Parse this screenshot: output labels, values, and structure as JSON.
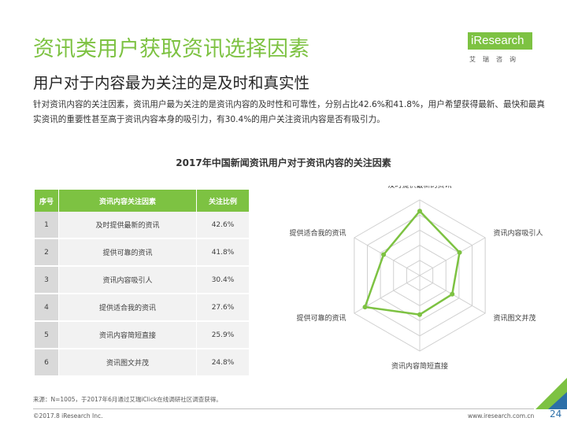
{
  "header": {
    "title": "资讯类用户获取资讯选择因素",
    "subtitle": "用户对于内容最为关注的是及时和真实性",
    "description": "针对资讯内容的关注因素，资讯用户最为关注的是资讯内容的及时性和可靠性，分别占比42.6%和41.8%，用户希望获得最新、最快和最真实资讯的重要性甚至高于资讯内容本身的吸引力，有30.4%的用户关注资讯内容是否有吸引力。"
  },
  "logo": {
    "brand": "iResearch",
    "sub": "艾瑞咨询"
  },
  "colors": {
    "accent": "#7dc242",
    "page_number": "#2c6fa8"
  },
  "chart_data": {
    "type": "radar",
    "title": "2017年中国新闻资讯用户对于资讯内容的关注因素",
    "table": {
      "headers": [
        "序号",
        "资讯内容关注因素",
        "关注比例"
      ],
      "rows": [
        {
          "index": "1",
          "factor": "及时提供最新的资讯",
          "value": "42.6%"
        },
        {
          "index": "2",
          "factor": "提供可靠的资讯",
          "value": "41.8%"
        },
        {
          "index": "3",
          "factor": "资讯内容吸引人",
          "value": "30.4%"
        },
        {
          "index": "4",
          "factor": "提供适合我的资讯",
          "value": "27.6%"
        },
        {
          "index": "5",
          "factor": "资讯内容简短直接",
          "value": "25.9%"
        },
        {
          "index": "6",
          "factor": "资讯图文并茂",
          "value": "24.8%"
        }
      ]
    },
    "axes": [
      "及时提供最新的资讯",
      "资讯内容吸引人",
      "资讯图文并茂",
      "资讯内容简短直接",
      "提供可靠的资讯",
      "提供适合我的资讯"
    ],
    "values": [
      42.6,
      30.4,
      24.8,
      25.9,
      41.8,
      27.6
    ],
    "rlim": [
      0,
      50
    ],
    "grid_levels": 5
  },
  "footer": {
    "source": "来源：N=1005，于2017年6月通过艾瑞iClick在线调研社区调查获得。",
    "copyright": "©2017.8 iResearch Inc.",
    "website": "www.iresearch.com.cn",
    "page_number": "24"
  }
}
